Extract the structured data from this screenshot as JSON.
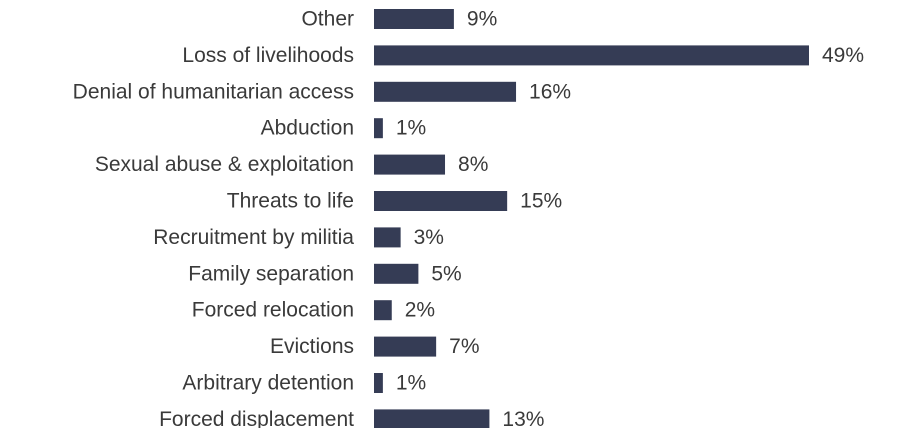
{
  "chart_data": {
    "type": "bar",
    "orientation": "horizontal",
    "categories": [
      "Other",
      "Loss of livelihoods",
      "Denial of humanitarian access",
      "Abduction",
      "Sexual abuse & exploitation",
      "Threats to life",
      "Recruitment by militia",
      "Family separation",
      "Forced relocation",
      "Evictions",
      "Arbitrary detention",
      "Forced displacement"
    ],
    "values": [
      9,
      49,
      16,
      1,
      8,
      15,
      3,
      5,
      2,
      7,
      1,
      13
    ],
    "value_labels": [
      "9%",
      "49%",
      "16%",
      "1%",
      "8%",
      "15%",
      "3%",
      "5%",
      "2%",
      "7%",
      "1%",
      "13%"
    ],
    "unit": "%",
    "xlim": [
      0,
      49
    ],
    "grid": false,
    "legend": "none",
    "colors": {
      "bar": "#353c55",
      "text": "#3a3a3a"
    }
  }
}
